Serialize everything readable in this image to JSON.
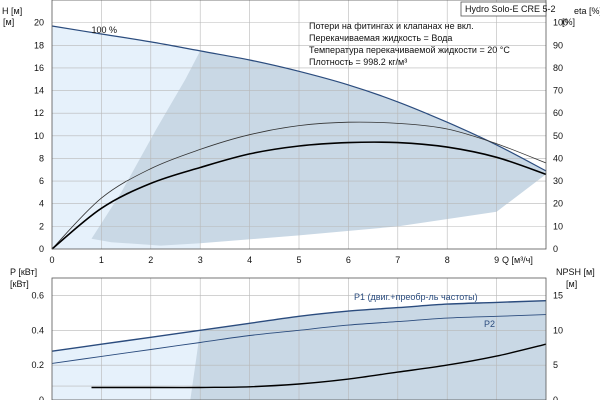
{
  "chart_data": [
    {
      "type": "line",
      "title": "Hydro Solo-E CRE 5-2",
      "xlabel": "Q [м³/ч]",
      "ylabel": "H [м]",
      "ylabel_right": "eta [%]",
      "xlim": [
        0,
        10
      ],
      "ylim": [
        0,
        22
      ],
      "ylim_right": [
        0,
        110
      ],
      "x_ticks": [
        0,
        1,
        2,
        3,
        4,
        5,
        6,
        7,
        8,
        9
      ],
      "y_ticks": [
        0,
        2,
        4,
        6,
        8,
        10,
        12,
        14,
        16,
        18,
        20
      ],
      "y_ticks_right": [
        0,
        10,
        20,
        30,
        40,
        50,
        60,
        70,
        80,
        90,
        100
      ],
      "notes": [
        "Потери на фитингах и клапанах не вкл.",
        "Перекачиваемая жидкость = Вода",
        "Температура перекачиваемой жидкости = 20 °C",
        "Плотность = 998.2 кг/м³"
      ],
      "annotations": [
        {
          "text": "100 %",
          "x": 0.8,
          "y": 19.1
        }
      ],
      "grid": true,
      "series": [
        {
          "name": "",
          "axis": "left",
          "color": "#2b4c7e",
          "width": 1.2,
          "x": [
            0,
            1,
            2,
            3,
            4,
            5,
            6,
            7,
            8,
            9,
            10
          ],
          "y": [
            19.7,
            19.0,
            18.3,
            17.5,
            16.7,
            15.7,
            14.5,
            13.0,
            11.2,
            9.2,
            6.9
          ]
        },
        {
          "name": "",
          "axis": "right",
          "color": "#333333",
          "width": 0.8,
          "x": [
            0,
            1,
            2,
            3,
            4,
            5,
            6,
            7,
            8,
            9,
            10
          ],
          "y": [
            0,
            22.5,
            35.5,
            44.0,
            50.5,
            54.5,
            56.0,
            55.5,
            53.0,
            46.5,
            38.0
          ]
        },
        {
          "name": "",
          "axis": "right",
          "color": "#000000",
          "width": 1.6,
          "x": [
            0,
            1,
            2,
            3,
            4,
            5,
            6,
            7,
            8,
            9,
            10
          ],
          "y": [
            0,
            18.0,
            29.0,
            36.0,
            42.0,
            45.5,
            47.0,
            47.0,
            45.0,
            40.5,
            33.0
          ]
        }
      ]
    },
    {
      "type": "line",
      "xlabel": "",
      "ylabel": "P [кВт]",
      "ylabel_right": "NPSH [м]",
      "xlim": [
        0,
        10
      ],
      "ylim": [
        0,
        0.7
      ],
      "ylim_right": [
        0,
        17.5
      ],
      "y_ticks": [
        0,
        0.2,
        0.4,
        0.6
      ],
      "y_ticks_right": [
        0,
        5,
        10,
        15
      ],
      "grid": true,
      "series": [
        {
          "name": "P1 (двиг.+преобр-ль частоты)",
          "axis": "left",
          "color": "#2b4c7e",
          "width": 1.4,
          "x": [
            0,
            1,
            2,
            3,
            4,
            5,
            6,
            7,
            8,
            9,
            10
          ],
          "y": [
            0.28,
            0.32,
            0.36,
            0.4,
            0.44,
            0.48,
            0.51,
            0.53,
            0.55,
            0.56,
            0.57
          ]
        },
        {
          "name": "P2",
          "axis": "left",
          "color": "#2b4c7e",
          "width": 0.9,
          "x": [
            0,
            1,
            2,
            3,
            4,
            5,
            6,
            7,
            8,
            9,
            10
          ],
          "y": [
            0.21,
            0.25,
            0.29,
            0.33,
            0.37,
            0.4,
            0.43,
            0.45,
            0.47,
            0.48,
            0.49
          ]
        },
        {
          "name": "",
          "axis": "right",
          "color": "#000000",
          "width": 1.4,
          "x": [
            0.8,
            2,
            3,
            4,
            5,
            6,
            7,
            8,
            9,
            10
          ],
          "y": [
            1.8,
            1.8,
            1.8,
            1.9,
            2.3,
            3.0,
            4.0,
            5.0,
            6.3,
            8.0
          ]
        }
      ]
    }
  ]
}
